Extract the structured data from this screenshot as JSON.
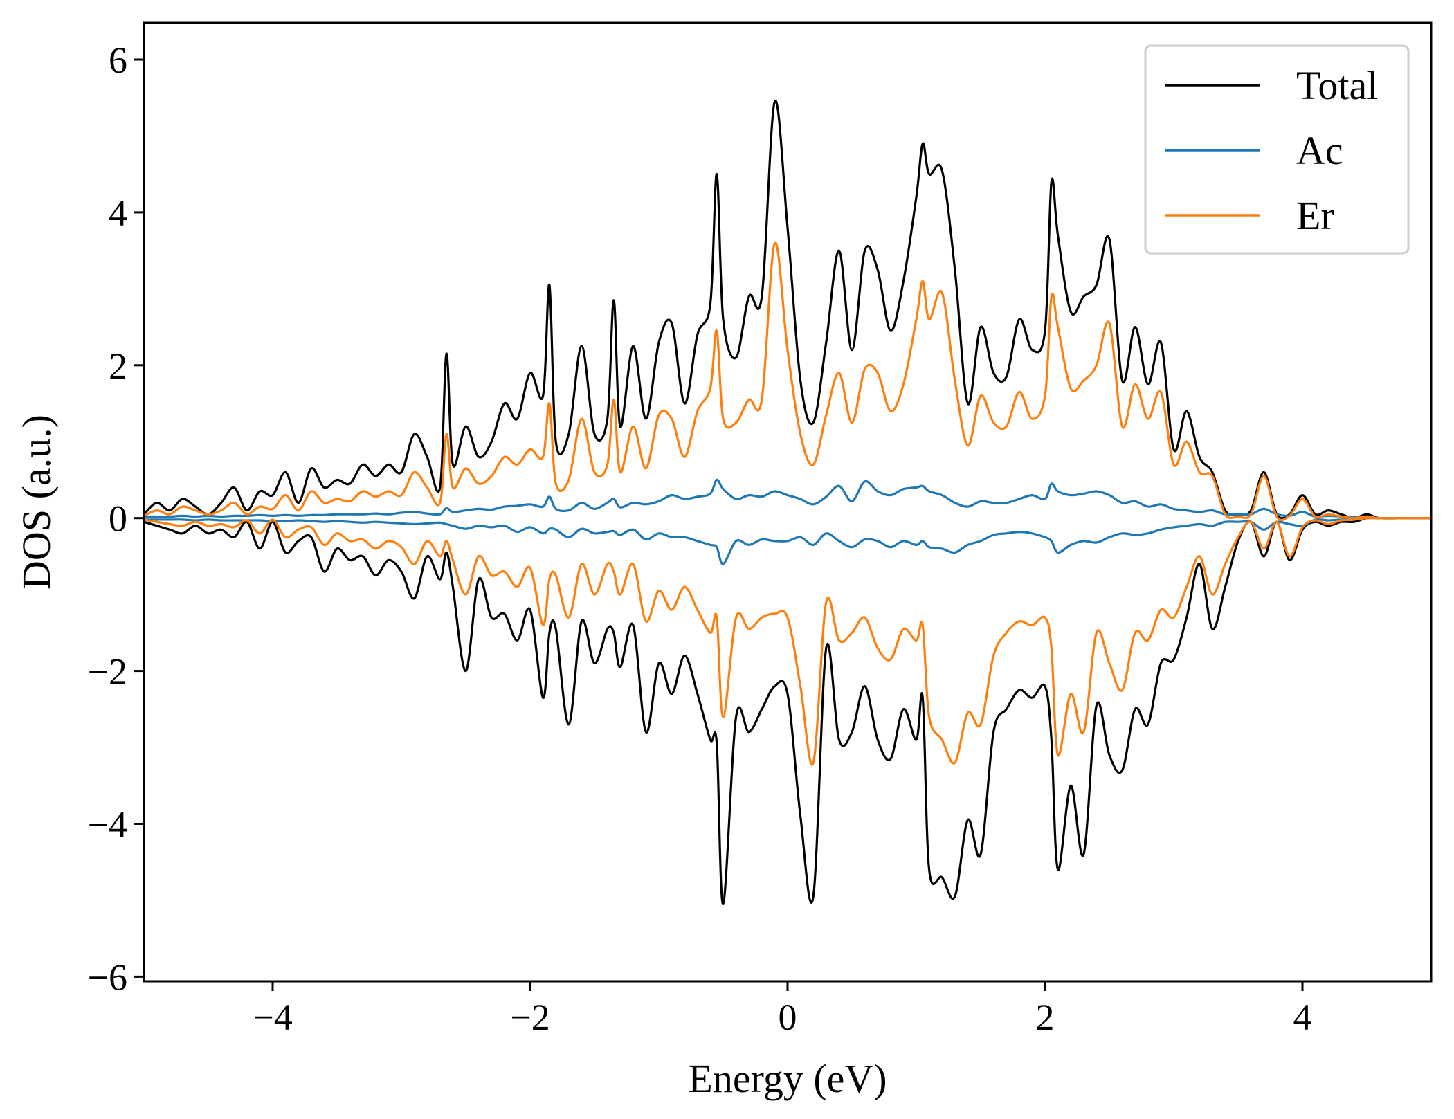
{
  "chart_data": {
    "type": "line",
    "title": "",
    "xlabel": "Energy (eV)",
    "ylabel": "DOS (a.u.)",
    "xlim": [
      -5,
      5
    ],
    "ylim": [
      -6.06,
      6.48
    ],
    "xticks": [
      -4,
      -2,
      0,
      2,
      4
    ],
    "xtick_labels": [
      "−4",
      "−2",
      "0",
      "2",
      "4"
    ],
    "yticks": [
      -6,
      -4,
      -2,
      0,
      2,
      4,
      6
    ],
    "ytick_labels": [
      "−6",
      "−4",
      "−2",
      "0",
      "2",
      "4",
      "6"
    ],
    "grid": false,
    "legend_position": "top-right",
    "x": [
      -5.0,
      -4.9,
      -4.8,
      -4.7,
      -4.6,
      -4.5,
      -4.4,
      -4.3,
      -4.2,
      -4.1,
      -4.0,
      -3.9,
      -3.8,
      -3.7,
      -3.6,
      -3.5,
      -3.4,
      -3.3,
      -3.2,
      -3.1,
      -3.0,
      -2.9,
      -2.8,
      -2.7,
      -2.65,
      -2.6,
      -2.5,
      -2.4,
      -2.3,
      -2.2,
      -2.1,
      -2.0,
      -1.9,
      -1.85,
      -1.8,
      -1.7,
      -1.6,
      -1.5,
      -1.4,
      -1.35,
      -1.3,
      -1.2,
      -1.1,
      -1.0,
      -0.9,
      -0.8,
      -0.7,
      -0.6,
      -0.55,
      -0.5,
      -0.4,
      -0.3,
      -0.2,
      -0.1,
      0.0,
      0.1,
      0.2,
      0.3,
      0.4,
      0.5,
      0.6,
      0.7,
      0.8,
      0.9,
      1.0,
      1.05,
      1.1,
      1.2,
      1.3,
      1.4,
      1.5,
      1.6,
      1.7,
      1.8,
      1.9,
      2.0,
      2.05,
      2.1,
      2.2,
      2.3,
      2.4,
      2.5,
      2.6,
      2.7,
      2.8,
      2.9,
      3.0,
      3.1,
      3.2,
      3.3,
      3.4,
      3.5,
      3.6,
      3.7,
      3.8,
      3.9,
      4.0,
      4.1,
      4.2,
      4.3,
      4.4,
      4.5,
      4.6,
      4.8,
      5.0
    ],
    "series": [
      {
        "name": "Total",
        "color": "#000000",
        "up": [
          0.05,
          0.2,
          0.1,
          0.25,
          0.15,
          0.05,
          0.2,
          0.4,
          0.1,
          0.35,
          0.3,
          0.6,
          0.2,
          0.65,
          0.4,
          0.5,
          0.45,
          0.7,
          0.55,
          0.7,
          0.6,
          1.1,
          0.8,
          0.4,
          2.15,
          0.7,
          1.2,
          0.8,
          1.0,
          1.5,
          1.3,
          1.9,
          1.6,
          3.05,
          1.0,
          1.1,
          2.25,
          1.1,
          1.3,
          2.85,
          1.2,
          2.25,
          1.3,
          2.3,
          2.55,
          1.5,
          2.4,
          2.8,
          4.5,
          2.6,
          2.1,
          2.9,
          2.9,
          5.45,
          3.8,
          1.8,
          1.25,
          2.3,
          3.5,
          2.2,
          3.5,
          3.25,
          2.45,
          3.1,
          4.2,
          4.9,
          4.5,
          4.55,
          3.25,
          1.5,
          2.5,
          1.9,
          1.85,
          2.6,
          2.2,
          2.45,
          4.4,
          3.7,
          2.7,
          2.9,
          3.05,
          3.65,
          1.8,
          2.5,
          1.75,
          2.3,
          0.9,
          1.4,
          0.8,
          0.6,
          0.1,
          0.05,
          0.1,
          0.6,
          0.05,
          0.05,
          0.3,
          0.05,
          0.1,
          0.05,
          0.0,
          0.05,
          0.0,
          0.0,
          0.0
        ],
        "down": [
          -0.05,
          -0.1,
          -0.15,
          -0.2,
          -0.1,
          -0.2,
          -0.15,
          -0.25,
          -0.05,
          -0.4,
          -0.05,
          -0.45,
          -0.3,
          -0.25,
          -0.7,
          -0.4,
          -0.55,
          -0.5,
          -0.75,
          -0.55,
          -0.7,
          -1.05,
          -0.5,
          -0.8,
          -0.45,
          -0.9,
          -2.0,
          -0.8,
          -1.3,
          -1.25,
          -1.6,
          -1.2,
          -2.35,
          -1.5,
          -1.45,
          -2.7,
          -1.35,
          -1.9,
          -1.45,
          -1.5,
          -1.95,
          -1.4,
          -2.8,
          -1.9,
          -2.3,
          -1.8,
          -2.3,
          -2.9,
          -2.95,
          -5.05,
          -2.6,
          -2.8,
          -2.5,
          -2.2,
          -2.3,
          -3.9,
          -4.95,
          -1.7,
          -2.9,
          -2.8,
          -2.2,
          -2.9,
          -3.15,
          -2.5,
          -2.9,
          -2.35,
          -4.6,
          -4.7,
          -4.95,
          -3.95,
          -4.4,
          -2.8,
          -2.5,
          -2.25,
          -2.35,
          -2.2,
          -2.9,
          -4.6,
          -3.5,
          -4.4,
          -2.45,
          -3.1,
          -3.3,
          -2.5,
          -2.7,
          -1.9,
          -1.85,
          -1.3,
          -0.6,
          -1.45,
          -0.9,
          -0.3,
          -0.05,
          -0.5,
          -0.05,
          -0.55,
          -0.15,
          -0.05,
          -0.1,
          -0.05,
          -0.05,
          0.0,
          0.0,
          0.0,
          0.0
        ]
      },
      {
        "name": "Ac",
        "color": "#1f77b4",
        "up": [
          0.02,
          0.02,
          0.02,
          0.03,
          0.02,
          0.03,
          0.02,
          0.03,
          0.03,
          0.04,
          0.03,
          0.04,
          0.03,
          0.04,
          0.04,
          0.05,
          0.05,
          0.05,
          0.06,
          0.05,
          0.07,
          0.08,
          0.06,
          0.05,
          0.13,
          0.08,
          0.1,
          0.12,
          0.11,
          0.15,
          0.16,
          0.18,
          0.15,
          0.28,
          0.12,
          0.1,
          0.2,
          0.12,
          0.2,
          0.25,
          0.14,
          0.2,
          0.18,
          0.22,
          0.3,
          0.25,
          0.28,
          0.32,
          0.5,
          0.38,
          0.25,
          0.3,
          0.28,
          0.35,
          0.3,
          0.25,
          0.18,
          0.28,
          0.42,
          0.22,
          0.48,
          0.35,
          0.3,
          0.38,
          0.4,
          0.42,
          0.35,
          0.3,
          0.2,
          0.15,
          0.22,
          0.2,
          0.2,
          0.25,
          0.3,
          0.25,
          0.45,
          0.35,
          0.3,
          0.32,
          0.35,
          0.3,
          0.2,
          0.22,
          0.15,
          0.18,
          0.12,
          0.1,
          0.08,
          0.1,
          0.05,
          0.05,
          0.05,
          0.12,
          0.05,
          0.03,
          0.08,
          0.02,
          0.03,
          0.02,
          0.01,
          0.01,
          0.0,
          0.0,
          0.0
        ],
        "down": [
          -0.02,
          -0.02,
          -0.02,
          -0.02,
          -0.03,
          -0.02,
          -0.03,
          -0.03,
          -0.03,
          -0.03,
          -0.04,
          -0.04,
          -0.03,
          -0.04,
          -0.05,
          -0.04,
          -0.05,
          -0.06,
          -0.05,
          -0.06,
          -0.07,
          -0.08,
          -0.07,
          -0.06,
          -0.08,
          -0.1,
          -0.14,
          -0.1,
          -0.12,
          -0.1,
          -0.18,
          -0.12,
          -0.2,
          -0.14,
          -0.15,
          -0.25,
          -0.14,
          -0.2,
          -0.18,
          -0.17,
          -0.22,
          -0.15,
          -0.28,
          -0.2,
          -0.25,
          -0.25,
          -0.3,
          -0.35,
          -0.38,
          -0.6,
          -0.3,
          -0.35,
          -0.28,
          -0.3,
          -0.3,
          -0.25,
          -0.35,
          -0.2,
          -0.3,
          -0.38,
          -0.28,
          -0.3,
          -0.38,
          -0.3,
          -0.35,
          -0.3,
          -0.38,
          -0.4,
          -0.45,
          -0.35,
          -0.3,
          -0.22,
          -0.2,
          -0.18,
          -0.2,
          -0.25,
          -0.3,
          -0.45,
          -0.35,
          -0.3,
          -0.32,
          -0.25,
          -0.2,
          -0.22,
          -0.2,
          -0.15,
          -0.12,
          -0.1,
          -0.08,
          -0.1,
          -0.05,
          -0.05,
          -0.05,
          -0.15,
          -0.05,
          -0.08,
          -0.1,
          -0.02,
          -0.03,
          -0.02,
          -0.01,
          0.0,
          0.0,
          0.0,
          0.0
        ]
      },
      {
        "name": "Er",
        "color": "#ff7f0e",
        "up": [
          0.03,
          0.1,
          0.05,
          0.15,
          0.1,
          0.05,
          0.1,
          0.2,
          0.05,
          0.15,
          0.12,
          0.3,
          0.1,
          0.35,
          0.2,
          0.25,
          0.22,
          0.35,
          0.28,
          0.35,
          0.3,
          0.6,
          0.4,
          0.2,
          1.1,
          0.4,
          0.65,
          0.45,
          0.55,
          0.8,
          0.7,
          0.9,
          0.8,
          1.5,
          0.45,
          0.5,
          1.3,
          0.6,
          0.7,
          1.55,
          0.6,
          1.2,
          0.65,
          1.35,
          1.3,
          0.8,
          1.4,
          1.7,
          2.45,
          1.3,
          1.25,
          1.55,
          1.55,
          3.6,
          2.2,
          1.1,
          0.7,
          1.35,
          1.9,
          1.25,
          1.95,
          1.9,
          1.4,
          1.75,
          2.6,
          3.1,
          2.6,
          2.95,
          1.8,
          0.95,
          1.6,
          1.25,
          1.2,
          1.65,
          1.3,
          1.6,
          2.9,
          2.5,
          1.7,
          1.8,
          2.0,
          2.55,
          1.2,
          1.75,
          1.3,
          1.65,
          0.7,
          1.0,
          0.6,
          0.55,
          0.05,
          0.02,
          0.05,
          0.55,
          0.02,
          0.03,
          0.25,
          0.02,
          0.05,
          0.02,
          0.0,
          0.02,
          0.0,
          0.0,
          0.0
        ],
        "down": [
          -0.02,
          -0.05,
          -0.08,
          -0.1,
          -0.05,
          -0.1,
          -0.08,
          -0.12,
          -0.03,
          -0.2,
          -0.02,
          -0.25,
          -0.15,
          -0.12,
          -0.35,
          -0.2,
          -0.3,
          -0.28,
          -0.4,
          -0.3,
          -0.38,
          -0.6,
          -0.3,
          -0.5,
          -0.3,
          -0.55,
          -1.0,
          -0.5,
          -0.75,
          -0.7,
          -0.9,
          -0.65,
          -1.4,
          -0.8,
          -0.75,
          -1.3,
          -0.6,
          -1.0,
          -0.6,
          -0.7,
          -1.0,
          -0.6,
          -1.35,
          -0.95,
          -1.2,
          -0.9,
          -1.2,
          -1.5,
          -1.3,
          -2.6,
          -1.3,
          -1.45,
          -1.3,
          -1.25,
          -1.3,
          -2.2,
          -3.2,
          -1.1,
          -1.6,
          -1.5,
          -1.3,
          -1.7,
          -1.85,
          -1.45,
          -1.6,
          -1.4,
          -2.6,
          -2.9,
          -3.2,
          -2.55,
          -2.7,
          -1.8,
          -1.5,
          -1.35,
          -1.4,
          -1.3,
          -1.7,
          -3.1,
          -2.3,
          -2.8,
          -1.5,
          -1.9,
          -2.25,
          -1.5,
          -1.6,
          -1.2,
          -1.3,
          -0.9,
          -0.5,
          -1.0,
          -0.6,
          -0.25,
          -0.05,
          -0.4,
          -0.05,
          -0.5,
          -0.12,
          -0.03,
          -0.08,
          -0.03,
          -0.02,
          0.0,
          0.0,
          0.0,
          0.0
        ]
      }
    ]
  }
}
